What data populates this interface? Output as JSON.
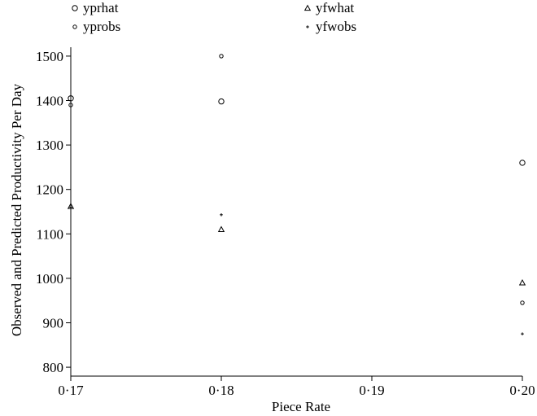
{
  "chart_data": {
    "type": "scatter",
    "title": "",
    "xlabel": "Piece Rate",
    "ylabel": "Observed and Predicted Productivity Per Day",
    "xlim": [
      0.17,
      0.2
    ],
    "ylim": [
      780,
      1520
    ],
    "x_ticks": [
      {
        "value": 0.17,
        "label": "0·17"
      },
      {
        "value": 0.18,
        "label": "0·18"
      },
      {
        "value": 0.19,
        "label": "0·19"
      },
      {
        "value": 0.2,
        "label": "0·20"
      }
    ],
    "y_ticks": [
      {
        "value": 800,
        "label": "800"
      },
      {
        "value": 900,
        "label": "900"
      },
      {
        "value": 1000,
        "label": "1000"
      },
      {
        "value": 1100,
        "label": "1100"
      },
      {
        "value": 1200,
        "label": "1200"
      },
      {
        "value": 1300,
        "label": "1300"
      },
      {
        "value": 1400,
        "label": "1400"
      },
      {
        "value": 1500,
        "label": "1500"
      }
    ],
    "grid": false,
    "legend": "top",
    "series": [
      {
        "name": "yprhat",
        "marker": "circle-large",
        "x": [
          0.17,
          0.18,
          0.2
        ],
        "y": [
          1405,
          1398,
          1260
        ]
      },
      {
        "name": "yprobs",
        "marker": "circle-small",
        "x": [
          0.17,
          0.18,
          0.2
        ],
        "y": [
          1390,
          1500,
          945
        ]
      },
      {
        "name": "yfwhat",
        "marker": "triangle",
        "x": [
          0.17,
          0.18,
          0.2
        ],
        "y": [
          1162,
          1110,
          990
        ]
      },
      {
        "name": "yfwobs",
        "marker": "plus",
        "x": [
          0.17,
          0.18,
          0.2
        ],
        "y": [
          1160,
          1143,
          875
        ]
      }
    ]
  }
}
